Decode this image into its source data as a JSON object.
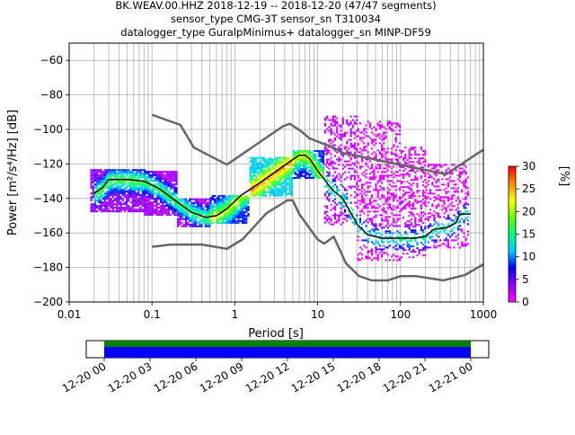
{
  "chart_data": {
    "type": "heatmap",
    "title_lines": [
      "BK.WEAV.00.HHZ   2018-12-19 -- 2018-12-20  (47/47 segments)",
      "sensor_type CMG-3T sensor_sn T310034",
      "datalogger_type GuralpMinimus+ datalogger_sn MINP-DF59"
    ],
    "xlabel": "Period [s]",
    "ylabel": "Power [m²/s⁴/Hz] [dB]",
    "x_scale": "log",
    "xlim": [
      0.01,
      1000
    ],
    "ylim": [
      -200,
      -50
    ],
    "x_ticks": [
      {
        "value": 0.01,
        "label": "0.01"
      },
      {
        "value": 0.1,
        "label": "0.1"
      },
      {
        "value": 1,
        "label": "1"
      },
      {
        "value": 10,
        "label": "10"
      },
      {
        "value": 100,
        "label": "100"
      },
      {
        "value": 1000,
        "label": "1000"
      }
    ],
    "y_ticks": [
      {
        "value": -60,
        "label": "−60"
      },
      {
        "value": -80,
        "label": "−80"
      },
      {
        "value": -100,
        "label": "−100"
      },
      {
        "value": -120,
        "label": "−120"
      },
      {
        "value": -140,
        "label": "−140"
      },
      {
        "value": -160,
        "label": "−160"
      },
      {
        "value": -180,
        "label": "−180"
      },
      {
        "value": -200,
        "label": "−200"
      }
    ],
    "grid": true,
    "colorbar": {
      "label": "[%]",
      "range": [
        0,
        30
      ],
      "ticks": [
        {
          "value": 0,
          "label": "0"
        },
        {
          "value": 5,
          "label": "5"
        },
        {
          "value": 10,
          "label": "10"
        },
        {
          "value": 15,
          "label": "15"
        },
        {
          "value": 20,
          "label": "20"
        },
        {
          "value": 25,
          "label": "25"
        },
        {
          "value": 30,
          "label": "30"
        }
      ],
      "colors": [
        "#ff00ff",
        "#9900ff",
        "#0000ff",
        "#00ccff",
        "#00ff80",
        "#66ff00",
        "#ffff00",
        "#ff8800",
        "#ff0000"
      ]
    },
    "series": [
      {
        "kind": "noise_model",
        "color": "#666666",
        "points": [
          [
            0.1,
            -91.5
          ],
          [
            0.22,
            -97.4
          ],
          [
            0.32,
            -110.5
          ],
          [
            0.8,
            -120.4
          ],
          [
            3.8,
            -98.2
          ],
          [
            4.6,
            -96.7
          ],
          [
            6.3,
            -101.0
          ],
          [
            7.9,
            -105.1
          ],
          [
            15.4,
            -110.5
          ],
          [
            20,
            -113.6
          ],
          [
            354.8,
            -126.0
          ],
          [
            1000,
            -111.7
          ]
        ]
      },
      {
        "kind": "noise_model",
        "color": "#666666",
        "points": [
          [
            0.1,
            -168.0
          ],
          [
            0.17,
            -166.7
          ],
          [
            0.4,
            -166.7
          ],
          [
            0.8,
            -169.2
          ],
          [
            1.24,
            -163.7
          ],
          [
            2.4,
            -148.6
          ],
          [
            4.3,
            -141.1
          ],
          [
            5.0,
            -141.1
          ],
          [
            6.0,
            -149.0
          ],
          [
            10,
            -163.8
          ],
          [
            12,
            -166.2
          ],
          [
            15.6,
            -162.1
          ],
          [
            21.9,
            -177.5
          ],
          [
            31.6,
            -185.0
          ],
          [
            45,
            -187.5
          ],
          [
            70,
            -187.5
          ],
          [
            101,
            -185.0
          ],
          [
            154,
            -185.0
          ],
          [
            328,
            -187.5
          ],
          [
            600,
            -184.4
          ],
          [
            1000,
            -178.2
          ]
        ]
      },
      {
        "kind": "mode",
        "color": "#000000",
        "points": [
          [
            0.02,
            -137
          ],
          [
            0.025,
            -134
          ],
          [
            0.03,
            -129
          ],
          [
            0.05,
            -129
          ],
          [
            0.08,
            -130
          ],
          [
            0.12,
            -134
          ],
          [
            0.2,
            -142
          ],
          [
            0.3,
            -148
          ],
          [
            0.45,
            -151
          ],
          [
            0.6,
            -150
          ],
          [
            0.8,
            -146
          ],
          [
            1.2,
            -138
          ],
          [
            2,
            -131
          ],
          [
            3,
            -125
          ],
          [
            4.5,
            -119
          ],
          [
            6,
            -115
          ],
          [
            7,
            -115
          ],
          [
            8,
            -117
          ],
          [
            10,
            -124
          ],
          [
            15,
            -135
          ],
          [
            20,
            -140
          ],
          [
            30,
            -155
          ],
          [
            40,
            -161
          ],
          [
            60,
            -163
          ],
          [
            150,
            -163
          ],
          [
            200,
            -162
          ],
          [
            250,
            -158
          ],
          [
            350,
            -157
          ],
          [
            400,
            -156
          ],
          [
            470,
            -154
          ],
          [
            520,
            -149
          ],
          [
            700,
            -149
          ]
        ]
      }
    ],
    "density_bands": [
      {
        "from": 0.018,
        "to": 0.08,
        "lo": -147,
        "hi": -123,
        "percent": 4
      },
      {
        "from": 0.08,
        "to": 0.2,
        "lo": -150,
        "hi": -124,
        "percent": 3
      },
      {
        "from": 0.2,
        "to": 0.5,
        "lo": -156,
        "hi": -140,
        "percent": 3
      },
      {
        "from": 0.5,
        "to": 1.5,
        "lo": -154,
        "hi": -138,
        "percent": 8
      },
      {
        "from": 1.5,
        "to": 5,
        "lo": -138,
        "hi": -116,
        "percent": 12
      },
      {
        "from": 5,
        "to": 12,
        "lo": -128,
        "hi": -112,
        "percent": 8
      },
      {
        "from": 12,
        "to": 30,
        "lo": -155,
        "hi": -92,
        "percent": 2
      },
      {
        "from": 30,
        "to": 100,
        "lo": -176,
        "hi": -95,
        "percent": 1
      },
      {
        "from": 100,
        "to": 200,
        "lo": -174,
        "hi": -110,
        "percent": 1
      },
      {
        "from": 200,
        "to": 660,
        "lo": -168,
        "hi": -120,
        "percent": 1
      }
    ],
    "coverage": {
      "tick_labels": [
        "12-20 00",
        "12-20 03",
        "12-20 06",
        "12-20 09",
        "12-20 12",
        "12-20 15",
        "12-20 18",
        "12-20 21",
        "12-21 00"
      ],
      "data_color": "#008000",
      "used_color": "#0000ff",
      "start_fraction": 0.0,
      "end_fraction": 1.0
    }
  }
}
